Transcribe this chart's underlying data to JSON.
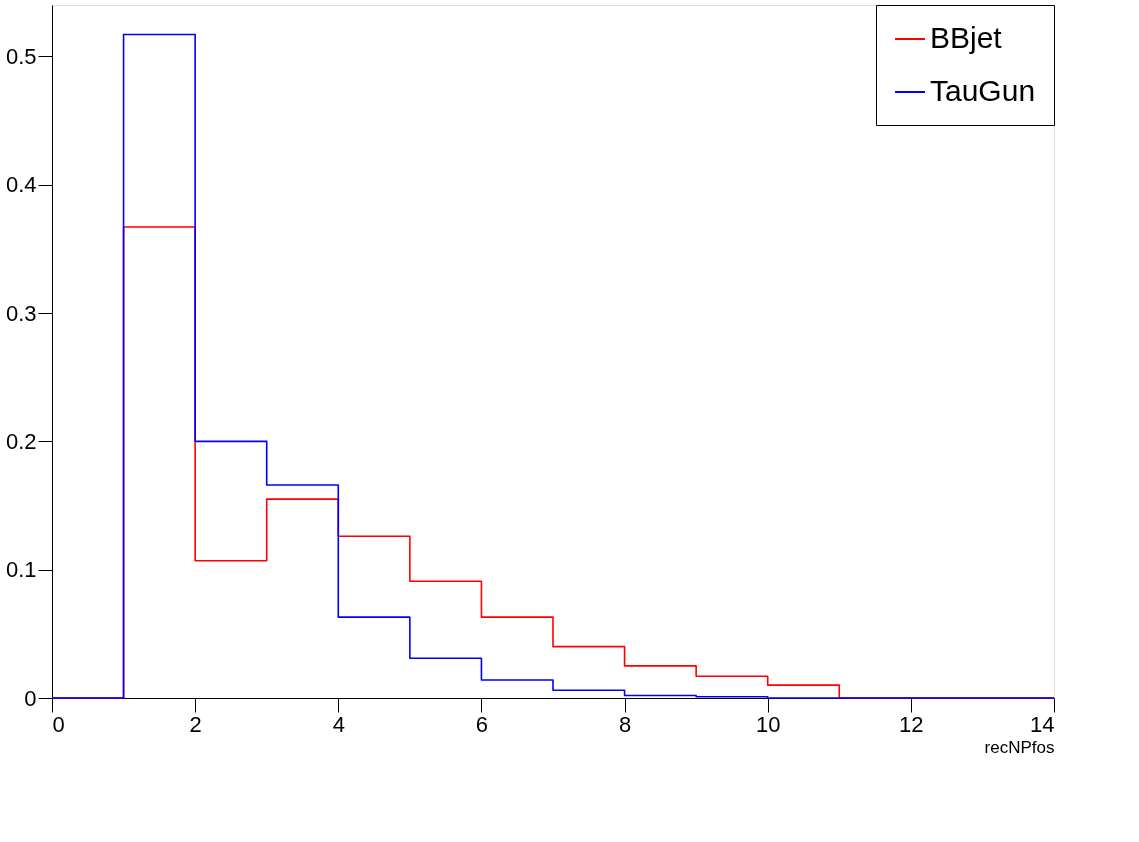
{
  "chart_data": {
    "type": "histogram",
    "xlabel": "recNPfos",
    "bins": [
      0,
      1,
      2,
      3,
      4,
      5,
      6,
      7,
      8,
      9,
      10,
      11,
      12,
      13,
      14
    ],
    "series": [
      {
        "name": "BBjet",
        "color": "#ff0000",
        "values": [
          0,
          0.367,
          0.107,
          0.155,
          0.126,
          0.091,
          0.063,
          0.04,
          0.025,
          0.017,
          0.01,
          0,
          0,
          0
        ]
      },
      {
        "name": "TauGun",
        "color": "#0000ff",
        "values": [
          0,
          0.517,
          0.2,
          0.166,
          0.063,
          0.031,
          0.014,
          0.006,
          0.002,
          0.001,
          0,
          0,
          0,
          0
        ]
      }
    ],
    "xlim": [
      0,
      14
    ],
    "ylim": [
      0,
      0.54
    ],
    "xticks": [
      0,
      2,
      4,
      6,
      8,
      10,
      12,
      14
    ],
    "yticks": [
      0,
      0.1,
      0.2,
      0.3,
      0.4,
      0.5
    ],
    "grid": false,
    "legend": "top right"
  }
}
